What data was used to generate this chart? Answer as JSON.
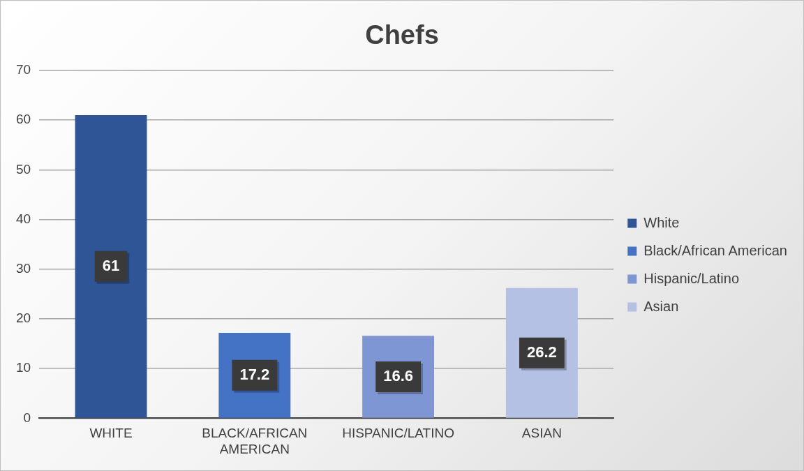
{
  "chart_data": {
    "type": "bar",
    "title": "Chefs",
    "categories": [
      "WHITE",
      "BLACK/AFRICAN AMERICAN",
      "HISPANIC/LATINO",
      "ASIAN"
    ],
    "series": [
      {
        "name": "White",
        "color": "#2f5597",
        "values": [
          61,
          null,
          null,
          null
        ]
      },
      {
        "name": "Black/African American",
        "color": "#4472c4",
        "values": [
          null,
          17.2,
          null,
          null
        ]
      },
      {
        "name": "Hispanic/Latino",
        "color": "#7f96d4",
        "values": [
          null,
          null,
          16.6,
          null
        ]
      },
      {
        "name": "Asian",
        "color": "#b4c0e4",
        "values": [
          null,
          null,
          null,
          26.2
        ]
      }
    ],
    "ylim": [
      0,
      70
    ],
    "yticks": [
      0,
      10,
      20,
      30,
      40,
      50,
      60,
      70
    ],
    "grid": "y",
    "legend": "right",
    "data_labels": true
  }
}
